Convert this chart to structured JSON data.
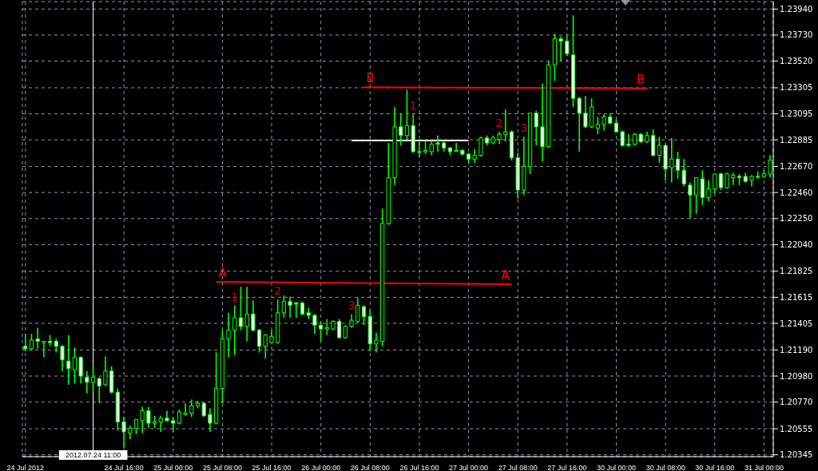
{
  "chart_data": {
    "type": "candlestick",
    "color": "#00ff00",
    "grid": true,
    "categories": [
      "24 Jul 2012",
      null,
      null,
      null,
      null,
      null,
      null,
      null,
      null,
      null,
      null,
      "2012.07.24 11:00",
      null,
      null,
      null,
      null,
      "24 Jul 16:00",
      null,
      null,
      null,
      null,
      null,
      null,
      null,
      "25 Jul 00:00",
      null,
      null,
      null,
      null,
      null,
      null,
      null,
      "25 Jul 08:00",
      null,
      null,
      null,
      null,
      null,
      null,
      null,
      "25 Jul 16:00",
      null,
      null,
      null,
      null,
      null,
      null,
      null,
      "26 Jul 00:00",
      null,
      null,
      null,
      null,
      null,
      null,
      null,
      "26 Jul 08:00",
      null,
      null,
      null,
      null,
      null,
      null,
      null,
      "26 Jul 16:00",
      null,
      null,
      null,
      null,
      null,
      null,
      null,
      "27 Jul 00:00",
      null,
      null,
      null,
      null,
      null,
      null,
      null,
      "27 Jul 08:00",
      null,
      null,
      null,
      null,
      null,
      null,
      null,
      "27 Jul 16:00",
      null,
      null,
      null,
      null,
      null,
      null,
      null,
      "30 Jul 00:00",
      null,
      null,
      null,
      null,
      null,
      null,
      null,
      "30 Jul 08:00",
      null,
      null,
      null,
      null,
      null,
      null,
      null,
      "30 Jul 16:00",
      null,
      null,
      null,
      null,
      null,
      null,
      null,
      "31 Jul 00:00",
      null
    ],
    "ohlc": [
      [
        1.2122,
        1.2132,
        1.2118,
        1.212
      ],
      [
        1.212,
        1.2132,
        1.2119,
        1.2127
      ],
      [
        1.2128,
        1.2137,
        1.212,
        1.2126
      ],
      [
        1.2125,
        1.2126,
        1.2113,
        1.2126
      ],
      [
        1.2126,
        1.2131,
        1.2122,
        1.2125
      ],
      [
        1.2126,
        1.2128,
        1.2117,
        1.2122
      ],
      [
        1.2122,
        1.2123,
        1.2102,
        1.2111
      ],
      [
        1.211,
        1.2131,
        1.2091,
        1.2104
      ],
      [
        1.2103,
        1.2121,
        1.2092,
        1.2113
      ],
      [
        1.2113,
        1.2114,
        1.2092,
        1.2098
      ],
      [
        1.2097,
        1.2102,
        1.2084,
        1.2093
      ],
      [
        1.2093,
        1.2106,
        1.2085,
        1.2097
      ],
      [
        1.2096,
        1.2097,
        1.2076,
        1.209
      ],
      [
        1.2091,
        1.2114,
        1.209,
        1.2102
      ],
      [
        1.2102,
        1.2106,
        1.2084,
        1.2085
      ],
      [
        1.2085,
        1.2088,
        1.2054,
        1.2061
      ],
      [
        1.2061,
        1.2065,
        1.204,
        1.2053
      ],
      [
        1.2052,
        1.2058,
        1.2047,
        1.2056
      ],
      [
        1.2056,
        1.2063,
        1.2051,
        1.2063
      ],
      [
        1.2062,
        1.2073,
        1.2052,
        1.207
      ],
      [
        1.207,
        1.2073,
        1.2056,
        1.206
      ],
      [
        1.206,
        1.2066,
        1.2056,
        1.2061
      ],
      [
        1.2061,
        1.2066,
        1.2053,
        1.2064
      ],
      [
        1.2064,
        1.207,
        1.2061,
        1.2062
      ],
      [
        1.2062,
        1.2065,
        1.2053,
        1.206
      ],
      [
        1.206,
        1.2071,
        1.2059,
        1.2069
      ],
      [
        1.2067,
        1.2076,
        1.2066,
        1.2068
      ],
      [
        1.2068,
        1.2079,
        1.2065,
        1.2074
      ],
      [
        1.2074,
        1.2078,
        1.2072,
        1.2076
      ],
      [
        1.2076,
        1.2077,
        1.2065,
        1.2066
      ],
      [
        1.2067,
        1.2072,
        1.2053,
        1.206
      ],
      [
        1.206,
        1.2117,
        1.2059,
        1.2088
      ],
      [
        1.2088,
        1.2135,
        1.2076,
        1.2128
      ],
      [
        1.2128,
        1.2149,
        1.2113,
        1.2135
      ],
      [
        1.2135,
        1.2155,
        1.2115,
        1.2145
      ],
      [
        1.2145,
        1.217,
        1.2135,
        1.2138
      ],
      [
        1.2138,
        1.217,
        1.2126,
        1.2148
      ],
      [
        1.2148,
        1.2159,
        1.2134,
        1.2135
      ],
      [
        1.2135,
        1.2136,
        1.2117,
        1.2122
      ],
      [
        1.2122,
        1.2132,
        1.2112,
        1.2131
      ],
      [
        1.2125,
        1.2135,
        1.2124,
        1.213
      ],
      [
        1.2125,
        1.216,
        1.2124,
        1.2149
      ],
      [
        1.2149,
        1.2163,
        1.2145,
        1.2158
      ],
      [
        1.2158,
        1.2162,
        1.2145,
        1.2155
      ],
      [
        1.2157,
        1.2158,
        1.2145,
        1.2156
      ],
      [
        1.2157,
        1.2158,
        1.2147,
        1.2148
      ],
      [
        1.2149,
        1.2153,
        1.2144,
        1.2147
      ],
      [
        1.2147,
        1.2148,
        1.2132,
        1.2139
      ],
      [
        1.2139,
        1.2142,
        1.2126,
        1.2136
      ],
      [
        1.2136,
        1.2144,
        1.2131,
        1.2137
      ],
      [
        1.2136,
        1.2143,
        1.2135,
        1.2142
      ],
      [
        1.2142,
        1.2144,
        1.2128,
        1.2129
      ],
      [
        1.2129,
        1.2139,
        1.2128,
        1.2138
      ],
      [
        1.2138,
        1.2148,
        1.2137,
        1.2143
      ],
      [
        1.2142,
        1.2161,
        1.2141,
        1.2155
      ],
      [
        1.2154,
        1.2155,
        1.2139,
        1.2146
      ],
      [
        1.2146,
        1.2151,
        1.2118,
        1.2124
      ],
      [
        1.2124,
        1.2133,
        1.2117,
        1.2127
      ],
      [
        1.2126,
        1.2233,
        1.2122,
        1.2221
      ],
      [
        1.2221,
        1.2286,
        1.222,
        1.2258
      ],
      [
        1.2258,
        1.2315,
        1.2252,
        1.2299
      ],
      [
        1.2299,
        1.231,
        1.2284,
        1.2292
      ],
      [
        1.2292,
        1.2329,
        1.2288,
        1.23
      ],
      [
        1.23,
        1.2309,
        1.2278,
        1.2279
      ],
      [
        1.2279,
        1.2288,
        1.2275,
        1.2279
      ],
      [
        1.2279,
        1.2288,
        1.2277,
        1.228
      ],
      [
        1.2279,
        1.2288,
        1.2276,
        1.2285
      ],
      [
        1.2286,
        1.2292,
        1.2279,
        1.2285
      ],
      [
        1.2286,
        1.2287,
        1.2279,
        1.2282
      ],
      [
        1.2282,
        1.2283,
        1.2276,
        1.2279
      ],
      [
        1.228,
        1.2286,
        1.228,
        1.228
      ],
      [
        1.228,
        1.2281,
        1.2276,
        1.2277
      ],
      [
        1.2277,
        1.2278,
        1.227,
        1.2273
      ],
      [
        1.2273,
        1.2281,
        1.227,
        1.2276
      ],
      [
        1.2276,
        1.2291,
        1.2275,
        1.229
      ],
      [
        1.229,
        1.2292,
        1.2284,
        1.2286
      ],
      [
        1.2286,
        1.2292,
        1.2285,
        1.229
      ],
      [
        1.2289,
        1.2295,
        1.2285,
        1.2293
      ],
      [
        1.2293,
        1.2313,
        1.2287,
        1.2295
      ],
      [
        1.2295,
        1.2296,
        1.2272,
        1.2274
      ],
      [
        1.2274,
        1.2278,
        1.2241,
        1.2248
      ],
      [
        1.2248,
        1.2291,
        1.2244,
        1.2267
      ],
      [
        1.2267,
        1.231,
        1.2261,
        1.231
      ],
      [
        1.231,
        1.2312,
        1.2284,
        1.2299
      ],
      [
        1.2299,
        1.2334,
        1.2271,
        1.2283
      ],
      [
        1.2283,
        1.2352,
        1.2282,
        1.2349
      ],
      [
        1.2349,
        1.2374,
        1.2336,
        1.237
      ],
      [
        1.237,
        1.2372,
        1.2352,
        1.2368
      ],
      [
        1.2368,
        1.2372,
        1.2356,
        1.2358
      ],
      [
        1.2357,
        1.2389,
        1.2315,
        1.2322
      ],
      [
        1.2322,
        1.2323,
        1.2279,
        1.231
      ],
      [
        1.231,
        1.2324,
        1.2298,
        1.2299
      ],
      [
        1.2299,
        1.2322,
        1.2298,
        1.2315
      ],
      [
        1.2298,
        1.2307,
        1.2293,
        1.2301
      ],
      [
        1.2301,
        1.2309,
        1.2296,
        1.2307
      ],
      [
        1.2307,
        1.231,
        1.2301,
        1.2302
      ],
      [
        1.2302,
        1.2305,
        1.2295,
        1.2295
      ],
      [
        1.2295,
        1.2296,
        1.2283,
        1.2284
      ],
      [
        1.2285,
        1.2293,
        1.2283,
        1.2284
      ],
      [
        1.2285,
        1.2294,
        1.2284,
        1.2293
      ],
      [
        1.2293,
        1.2294,
        1.2286,
        1.2287
      ],
      [
        1.2287,
        1.2295,
        1.2286,
        1.2292
      ],
      [
        1.2292,
        1.2297,
        1.2275,
        1.2276
      ],
      [
        1.2276,
        1.2291,
        1.227,
        1.2284
      ],
      [
        1.2284,
        1.2285,
        1.2256,
        1.2265
      ],
      [
        1.2266,
        1.229,
        1.2254,
        1.2273
      ],
      [
        1.2273,
        1.2279,
        1.2257,
        1.2264
      ],
      [
        1.2264,
        1.2273,
        1.2251,
        1.2253
      ],
      [
        1.2252,
        1.2254,
        1.2225,
        1.2244
      ],
      [
        1.2244,
        1.2258,
        1.2229,
        1.2258
      ],
      [
        1.2257,
        1.2264,
        1.2236,
        1.2242
      ],
      [
        1.2242,
        1.2256,
        1.2239,
        1.2249
      ],
      [
        1.2249,
        1.2261,
        1.2246,
        1.2261
      ],
      [
        1.2261,
        1.2262,
        1.2248,
        1.225
      ],
      [
        1.225,
        1.2262,
        1.2249,
        1.2261
      ],
      [
        1.2258,
        1.2262,
        1.2252,
        1.226
      ],
      [
        1.2259,
        1.2261,
        1.2252,
        1.2258
      ],
      [
        1.2259,
        1.2262,
        1.2254,
        1.2255
      ],
      [
        1.2256,
        1.226,
        1.2251,
        1.2259
      ],
      [
        1.2259,
        1.2263,
        1.2257,
        1.2259
      ],
      [
        1.2259,
        1.2264,
        1.2258,
        1.2261
      ],
      [
        1.2261,
        1.2276,
        1.2258,
        1.2272
      ]
    ],
    "series": [
      {
        "type": "line",
        "name": "A",
        "color": "#ff0000",
        "values": [
          null,
          null,
          null,
          null,
          null,
          null,
          null,
          null,
          null,
          null,
          null,
          null,
          null,
          null,
          null,
          null,
          null,
          null,
          null,
          null,
          null,
          null,
          null,
          null,
          null,
          null,
          null,
          null,
          null,
          null,
          null,
          1.2174,
          null,
          null,
          null,
          null,
          null,
          null,
          null,
          null,
          null,
          null,
          null,
          null,
          null,
          null,
          null,
          null,
          null,
          null,
          null,
          null,
          null,
          null,
          null,
          null,
          null,
          null,
          null,
          null,
          null,
          null,
          null,
          null,
          null,
          null,
          null,
          null,
          null,
          null,
          null,
          null,
          null,
          null,
          null,
          null,
          null,
          null,
          null,
          1.2172,
          null,
          null,
          null,
          null,
          null,
          null,
          null,
          null,
          null,
          null,
          null,
          null,
          null,
          null,
          null,
          null,
          null,
          null,
          null,
          null,
          null,
          null,
          null,
          null,
          null,
          null,
          null,
          null,
          null,
          null,
          null,
          null,
          null,
          null,
          null,
          null,
          null,
          null,
          null,
          null,
          null,
          null
        ]
      },
      {
        "type": "line",
        "name": "B",
        "color": "#ff0000",
        "values": [
          null,
          null,
          null,
          null,
          null,
          null,
          null,
          null,
          null,
          null,
          null,
          null,
          null,
          null,
          null,
          null,
          null,
          null,
          null,
          null,
          null,
          null,
          null,
          null,
          null,
          null,
          null,
          null,
          null,
          null,
          null,
          null,
          null,
          null,
          null,
          null,
          null,
          null,
          null,
          null,
          null,
          null,
          null,
          null,
          null,
          null,
          null,
          null,
          null,
          null,
          null,
          null,
          null,
          null,
          null,
          1.2331,
          null,
          null,
          null,
          null,
          null,
          null,
          null,
          null,
          null,
          null,
          null,
          null,
          null,
          null,
          null,
          null,
          null,
          null,
          null,
          null,
          null,
          null,
          null,
          null,
          null,
          null,
          null,
          null,
          null,
          null,
          null,
          null,
          null,
          null,
          null,
          null,
          null,
          null,
          null,
          null,
          null,
          null,
          null,
          null,
          null,
          1.233,
          null,
          null,
          null,
          null,
          null,
          null,
          null,
          null,
          null,
          null,
          null,
          null,
          null,
          null,
          null,
          null,
          null,
          null,
          null,
          null
        ]
      },
      {
        "type": "line",
        "color": "#ffffff",
        "values": [
          null,
          null,
          null,
          null,
          null,
          null,
          null,
          null,
          null,
          null,
          null,
          null,
          null,
          null,
          null,
          null,
          null,
          null,
          null,
          null,
          null,
          null,
          null,
          null,
          null,
          null,
          null,
          null,
          null,
          null,
          null,
          null,
          null,
          null,
          null,
          null,
          null,
          null,
          null,
          null,
          null,
          null,
          null,
          null,
          null,
          null,
          null,
          null,
          null,
          null,
          null,
          null,
          null,
          1.2288,
          null,
          null,
          null,
          null,
          null,
          null,
          null,
          null,
          null,
          null,
          null,
          null,
          null,
          null,
          null,
          null,
          null,
          null,
          1.2288,
          null,
          null,
          null,
          null,
          null,
          null,
          null,
          null,
          null,
          null,
          null,
          null,
          null,
          null,
          null,
          null,
          null,
          null,
          null,
          null,
          null,
          null,
          null,
          null,
          null,
          null,
          null,
          null,
          null,
          null,
          null,
          null,
          null,
          null,
          null,
          null,
          null,
          null,
          null,
          null,
          null,
          null,
          null,
          null,
          null,
          null,
          null,
          null,
          null
        ]
      }
    ],
    "ref_lines": [
      {
        "axis": "x",
        "value": "2012.07.24 11:00",
        "color": "#ffffff"
      }
    ],
    "annotations": [
      "1",
      "2",
      "3",
      "1",
      "2",
      "3"
    ],
    "ylim": [
      1.2033,
      1.24
    ],
    "yticks": [
      1.20345,
      1.20555,
      {
        "value": 1.2077,
        "label": "1.20770"
      },
      {
        "value": 1.2098,
        "label": "1.20980"
      },
      {
        "value": 1.2119,
        "label": "1.21190"
      },
      1.21405,
      1.21615,
      1.21825,
      {
        "value": 1.2204,
        "label": "1.22040"
      },
      {
        "value": 1.2225,
        "label": "1.22250"
      },
      {
        "value": 1.2246,
        "label": "1.22460"
      },
      {
        "value": 1.2267,
        "label": "1.22670"
      },
      1.22885,
      1.23095,
      1.23305,
      {
        "value": 1.2352,
        "label": "1.23520"
      },
      {
        "value": 1.2373,
        "label": "1.23730"
      },
      {
        "value": 1.2394,
        "label": "1.23940"
      }
    ]
  }
}
